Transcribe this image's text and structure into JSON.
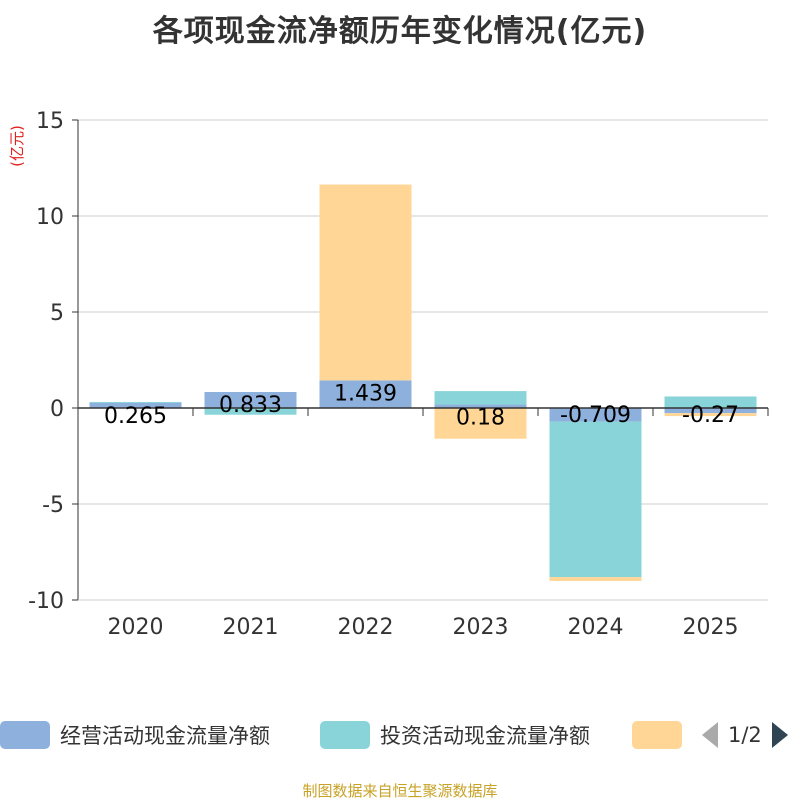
{
  "chart_data": {
    "type": "bar",
    "stacked": true,
    "title": "各项现金流净额历年变化情况(亿元)",
    "ylabel": "(亿元)",
    "ylim": [
      -10,
      15
    ],
    "yticks": [
      15,
      10,
      5,
      0,
      -5,
      -10
    ],
    "categories": [
      "2020",
      "2021",
      "2022",
      "2023",
      "2024",
      "2025"
    ],
    "series": [
      {
        "name": "经营活动现金流量净额",
        "color": "#8eb0dc",
        "values": [
          0.265,
          0.833,
          1.439,
          0.18,
          -0.709,
          -0.27
        ]
      },
      {
        "name": "投资活动现金流量净额",
        "color": "#88d4d8",
        "values": [
          0.05,
          -0.35,
          0.0,
          0.7,
          -8.1,
          0.6
        ]
      },
      {
        "name": "",
        "color": "#ffd696",
        "values": [
          0.0,
          0.0,
          10.2,
          -1.6,
          -0.2,
          -0.15
        ]
      }
    ],
    "data_labels": [
      "0.265",
      "0.833",
      "1.439",
      "0.18",
      "-0.709",
      "-0.27"
    ],
    "legend_position": "bottom",
    "grid": true
  },
  "legend": {
    "page": "1/2"
  },
  "footer": "制图数据来自恒生聚源数据库"
}
